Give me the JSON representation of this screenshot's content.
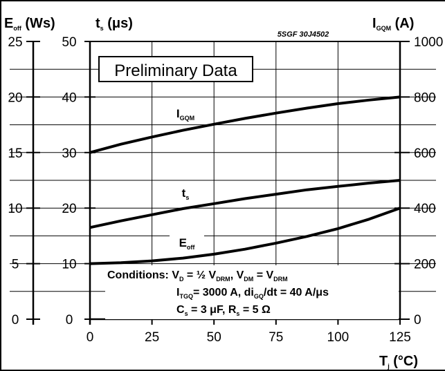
{
  "chart_data": {
    "type": "line",
    "title": "",
    "badge": "Preliminary Data",
    "doc_id": "5SGF 30J4502",
    "x": [
      0,
      12.5,
      25,
      37.5,
      50,
      62.5,
      75,
      87.5,
      100,
      112.5,
      125
    ],
    "xlim": [
      0,
      125
    ],
    "x_ticks": [
      "0",
      "25",
      "50",
      "75",
      "100",
      "125"
    ],
    "xlabel": {
      "main": "T",
      "sub": "j",
      "rest": " (°C)"
    },
    "left_axis_1": {
      "label_main": "E",
      "label_sub": "off",
      "label_rest": " (Ws)",
      "ylim": [
        0,
        25
      ],
      "ticks": [
        "0",
        "5",
        "10",
        "15",
        "20",
        "25"
      ]
    },
    "left_axis_2": {
      "label_main": "t",
      "label_sub": "s",
      "label_rest": " (μs)",
      "ylim": [
        0,
        50
      ],
      "ticks": [
        "0",
        "10",
        "20",
        "30",
        "40",
        "50"
      ]
    },
    "right_axis": {
      "label_main": "I",
      "label_sub": "GQM",
      "label_rest": " (A)",
      "ylim": [
        0,
        1000
      ],
      "ticks": [
        "0",
        "200",
        "400",
        "600",
        "800",
        "1000"
      ]
    },
    "series": [
      {
        "name": "I",
        "name_sub": "GQM",
        "axis": "right",
        "values": [
          600,
          630,
          656,
          680,
          702,
          723,
          742,
          760,
          776,
          789,
          800
        ]
      },
      {
        "name": "t",
        "name_sub": "s",
        "axis": "left_2",
        "values": [
          16.5,
          17.7,
          18.8,
          19.9,
          20.8,
          21.7,
          22.5,
          23.3,
          23.9,
          24.5,
          25
        ]
      },
      {
        "name": "E",
        "name_sub": "off",
        "axis": "left_1",
        "values": [
          5,
          5.08,
          5.25,
          5.5,
          5.85,
          6.3,
          6.85,
          7.45,
          8.15,
          9.0,
          10.0
        ]
      }
    ],
    "conditions": {
      "line1_label": "Conditions: ",
      "line1": [
        [
          "V",
          "D"
        ],
        [
          " = ½ V",
          "DRM"
        ],
        [
          ", V",
          "DM"
        ],
        [
          " = V",
          "DRM"
        ]
      ],
      "line2": [
        [
          "I",
          "TGQ"
        ],
        [
          "= 3000 A, di",
          "GQ"
        ],
        [
          "/dt = 40 A/μs",
          ""
        ]
      ],
      "line3": [
        [
          "C",
          "s"
        ],
        [
          " = 3 μF, R",
          "s"
        ],
        [
          " = 5 Ω",
          ""
        ]
      ]
    }
  }
}
